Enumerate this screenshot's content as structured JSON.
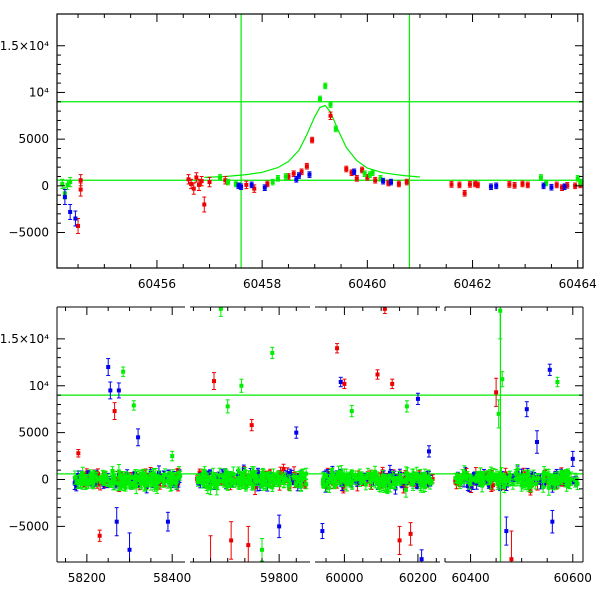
{
  "chart_data": [
    {
      "type": "scatter",
      "title": "",
      "xlabel": "",
      "ylabel": "",
      "xlim": [
        60454.1,
        60464.1
      ],
      "ylim": [
        -8800,
        18400
      ],
      "xticks": [
        60456,
        60458,
        60460,
        60462,
        60464
      ],
      "xtick_labels": [
        "60456",
        "60458",
        "60460",
        "60462",
        "60464"
      ],
      "yticks": [
        -5000,
        0,
        5000,
        10000,
        15000
      ],
      "ytick_labels": [
        "−5000",
        "0",
        "5000",
        "10⁴",
        "1.5×10⁴"
      ],
      "grid": false,
      "hlines": [
        600,
        9000
      ],
      "vlines": [
        60457.6,
        60460.8
      ],
      "colors": {
        "red": "#ee0000",
        "green": "#00ee00",
        "blue": "#0000ee"
      },
      "model_curve": {
        "color": "#00ee00",
        "x": [
          60456.9,
          60457.3,
          60457.7,
          60458.0,
          60458.3,
          60458.5,
          60458.7,
          60458.85,
          60459.0,
          60459.1,
          60459.2,
          60459.3,
          60459.45,
          60459.6,
          60459.8,
          60460.0,
          60460.3,
          60460.7,
          60461.0
        ],
        "y": [
          900,
          1000,
          1200,
          1450,
          1950,
          2600,
          3800,
          5500,
          7400,
          8400,
          8600,
          7900,
          5900,
          4100,
          2700,
          1900,
          1400,
          1100,
          950
        ]
      },
      "series": [
        {
          "name": "",
          "color": "red",
          "points": [
            [
              60454.55,
              600,
              600
            ],
            [
              60454.55,
              -400,
              700
            ],
            [
              60454.5,
              -4300,
              800
            ],
            [
              60456.6,
              700,
              500
            ],
            [
              60456.65,
              200,
              500
            ],
            [
              60456.7,
              -300,
              600
            ],
            [
              60456.75,
              900,
              500
            ],
            [
              60456.8,
              100,
              600
            ],
            [
              60456.85,
              500,
              500
            ],
            [
              60456.9,
              -2000,
              800
            ],
            [
              60457.0,
              400,
              500
            ],
            [
              60457.3,
              600,
              400
            ],
            [
              60457.7,
              100,
              400
            ],
            [
              60457.85,
              -300,
              400
            ],
            [
              60458.1,
              200,
              300
            ],
            [
              60458.5,
              1000,
              300
            ],
            [
              60458.6,
              1300,
              300
            ],
            [
              60458.75,
              1500,
              300
            ],
            [
              60458.85,
              2100,
              300
            ],
            [
              60458.95,
              4900,
              300
            ],
            [
              60459.3,
              7500,
              400
            ],
            [
              60459.6,
              1800,
              300
            ],
            [
              60459.7,
              1400,
              300
            ],
            [
              60459.8,
              800,
              300
            ],
            [
              60459.9,
              1700,
              300
            ],
            [
              60460.0,
              900,
              300
            ],
            [
              60460.15,
              600,
              300
            ],
            [
              60460.4,
              300,
              300
            ],
            [
              60460.6,
              200,
              300
            ],
            [
              60460.75,
              400,
              300
            ],
            [
              60461.6,
              150,
              300
            ],
            [
              60461.75,
              100,
              300
            ],
            [
              60461.85,
              -800,
              300
            ],
            [
              60461.95,
              150,
              300
            ],
            [
              60462.05,
              200,
              300
            ],
            [
              60462.1,
              100,
              300
            ],
            [
              60462.7,
              150,
              300
            ],
            [
              60462.8,
              50,
              300
            ],
            [
              60462.95,
              200,
              300
            ],
            [
              60463.05,
              100,
              300
            ],
            [
              60463.6,
              100,
              300
            ],
            [
              60463.7,
              -200,
              300
            ],
            [
              60463.8,
              50,
              300
            ],
            [
              60463.95,
              0,
              300
            ],
            [
              60464.05,
              100,
              300
            ]
          ]
        },
        {
          "name": "",
          "color": "green",
          "points": [
            [
              60454.2,
              200,
              500
            ],
            [
              60454.25,
              -800,
              600
            ],
            [
              60454.3,
              100,
              500
            ],
            [
              60454.35,
              400,
              500
            ],
            [
              60457.2,
              900,
              300
            ],
            [
              60457.35,
              400,
              300
            ],
            [
              60457.5,
              200,
              300
            ],
            [
              60458.2,
              400,
              300
            ],
            [
              60458.3,
              800,
              300
            ],
            [
              60458.45,
              1000,
              300
            ],
            [
              60459.1,
              9300,
              300
            ],
            [
              60459.2,
              10700,
              300
            ],
            [
              60459.3,
              8700,
              300
            ],
            [
              60459.4,
              6100,
              300
            ],
            [
              60459.95,
              1300,
              300
            ],
            [
              60460.05,
              1200,
              300
            ],
            [
              60460.1,
              1400,
              300
            ],
            [
              60460.25,
              800,
              300
            ],
            [
              60463.3,
              900,
              300
            ],
            [
              60463.4,
              300,
              300
            ],
            [
              60464.0,
              800,
              300
            ],
            [
              60464.05,
              400,
              300
            ]
          ]
        },
        {
          "name": "",
          "color": "blue",
          "points": [
            [
              60454.25,
              -1200,
              800
            ],
            [
              60454.35,
              -2800,
              800
            ],
            [
              60454.45,
              -3500,
              800
            ],
            [
              60457.55,
              0,
              300
            ],
            [
              60457.6,
              -100,
              300
            ],
            [
              60457.8,
              100,
              300
            ],
            [
              60458.05,
              -200,
              300
            ],
            [
              60458.65,
              700,
              300
            ],
            [
              60458.7,
              1100,
              300
            ],
            [
              60458.9,
              1200,
              300
            ],
            [
              60459.75,
              1500,
              300
            ],
            [
              60460.3,
              500,
              300
            ],
            [
              60460.45,
              400,
              300
            ],
            [
              60462.35,
              -100,
              300
            ],
            [
              60462.45,
              0,
              300
            ],
            [
              60463.35,
              0,
              300
            ],
            [
              60463.5,
              -150,
              300
            ],
            [
              60463.75,
              -100,
              300
            ]
          ]
        }
      ]
    },
    {
      "type": "scatter",
      "title": "",
      "xlabel": "",
      "ylabel": "",
      "ylim": [
        -8800,
        18400
      ],
      "grid": false,
      "hlines": [
        600,
        9000
      ],
      "vlines": [
        60458.5
      ],
      "yticks": [
        -5000,
        0,
        5000,
        10000,
        15000
      ],
      "ytick_labels": [
        "−5000",
        "0",
        "5000",
        "10⁴",
        "1.5×10⁴"
      ],
      "segments": [
        {
          "xlim": [
            58130,
            58430
          ],
          "xticks": [
            58200,
            58400
          ],
          "xtick_labels": [
            "58200",
            "58400"
          ]
        },
        {
          "xlim": [
            59540,
            59890
          ],
          "xticks": [
            59800
          ],
          "xtick_labels": [
            "59800"
          ]
        },
        {
          "xlim": [
            59920,
            60260
          ],
          "xticks": [
            60000,
            60200
          ],
          "xtick_labels": [
            "60000",
            "60200"
          ]
        },
        {
          "xlim": [
            60350,
            60620
          ],
          "xticks": [
            60400,
            60600
          ],
          "xtick_labels": [
            "60400",
            "60600"
          ]
        }
      ],
      "clusters": [
        {
          "x_range": [
            58170,
            58420
          ],
          "y_spread": 1000
        },
        {
          "x_range": [
            59560,
            59880
          ],
          "y_spread": 1000
        },
        {
          "x_range": [
            59940,
            60240
          ],
          "y_spread": 1000
        },
        {
          "x_range": [
            60370,
            60610
          ],
          "y_spread": 1000
        }
      ],
      "outliers": [
        {
          "x": 58180,
          "y": 2800,
          "err": 400,
          "color": "red"
        },
        {
          "x": 58230,
          "y": -6000,
          "err": 600,
          "color": "red"
        },
        {
          "x": 58250,
          "y": 12000,
          "err": 900,
          "color": "blue"
        },
        {
          "x": 58255,
          "y": 9500,
          "err": 900,
          "color": "blue"
        },
        {
          "x": 58265,
          "y": 7300,
          "err": 900,
          "color": "red"
        },
        {
          "x": 58275,
          "y": 9500,
          "err": 800,
          "color": "blue"
        },
        {
          "x": 58285,
          "y": 11500,
          "err": 500,
          "color": "green"
        },
        {
          "x": 58270,
          "y": -4500,
          "err": 1500,
          "color": "blue"
        },
        {
          "x": 58300,
          "y": -7500,
          "err": 1800,
          "color": "blue"
        },
        {
          "x": 58310,
          "y": 7900,
          "err": 500,
          "color": "green"
        },
        {
          "x": 58320,
          "y": 4500,
          "err": 900,
          "color": "blue"
        },
        {
          "x": 58390,
          "y": -4500,
          "err": 1000,
          "color": "blue"
        },
        {
          "x": 58400,
          "y": 2500,
          "err": 500,
          "color": "green"
        },
        {
          "x": 59610,
          "y": 10500,
          "err": 900,
          "color": "red"
        },
        {
          "x": 59630,
          "y": 18200,
          "err": 800,
          "color": "green"
        },
        {
          "x": 59650,
          "y": 7800,
          "err": 700,
          "color": "green"
        },
        {
          "x": 59690,
          "y": 10000,
          "err": 700,
          "color": "green"
        },
        {
          "x": 59720,
          "y": 5800,
          "err": 600,
          "color": "red"
        },
        {
          "x": 59780,
          "y": 13500,
          "err": 600,
          "color": "green"
        },
        {
          "x": 59600,
          "y": -9000,
          "err": 3000,
          "color": "red"
        },
        {
          "x": 59660,
          "y": -6500,
          "err": 2000,
          "color": "red"
        },
        {
          "x": 59710,
          "y": -7000,
          "err": 2000,
          "color": "red"
        },
        {
          "x": 59750,
          "y": -7500,
          "err": 1200,
          "color": "green"
        },
        {
          "x": 59800,
          "y": -5000,
          "err": 1200,
          "color": "blue"
        },
        {
          "x": 59850,
          "y": 5000,
          "err": 600,
          "color": "blue"
        },
        {
          "x": 59940,
          "y": -5500,
          "err": 800,
          "color": "blue"
        },
        {
          "x": 59980,
          "y": 14000,
          "err": 500,
          "color": "red"
        },
        {
          "x": 59990,
          "y": 10400,
          "err": 500,
          "color": "blue"
        },
        {
          "x": 60000,
          "y": 10200,
          "err": 500,
          "color": "red"
        },
        {
          "x": 60020,
          "y": 7300,
          "err": 600,
          "color": "green"
        },
        {
          "x": 60090,
          "y": 11200,
          "err": 500,
          "color": "red"
        },
        {
          "x": 60110,
          "y": 18200,
          "err": 500,
          "color": "red"
        },
        {
          "x": 60130,
          "y": 10200,
          "err": 500,
          "color": "red"
        },
        {
          "x": 60170,
          "y": 7800,
          "err": 600,
          "color": "green"
        },
        {
          "x": 60200,
          "y": 8600,
          "err": 600,
          "color": "blue"
        },
        {
          "x": 60150,
          "y": -6500,
          "err": 1500,
          "color": "red"
        },
        {
          "x": 60180,
          "y": -5800,
          "err": 1200,
          "color": "red"
        },
        {
          "x": 60210,
          "y": -8500,
          "err": 1000,
          "color": "blue"
        },
        {
          "x": 60230,
          "y": 3000,
          "err": 600,
          "color": "blue"
        },
        {
          "x": 60450,
          "y": 9300,
          "err": 1500,
          "color": "red"
        },
        {
          "x": 60455,
          "y": 7000,
          "err": 1500,
          "color": "green"
        },
        {
          "x": 60458,
          "y": 18000,
          "err": 3000,
          "color": "green"
        },
        {
          "x": 60462,
          "y": 10700,
          "err": 800,
          "color": "green"
        },
        {
          "x": 60470,
          "y": -5500,
          "err": 1500,
          "color": "blue"
        },
        {
          "x": 60480,
          "y": -8500,
          "err": 3000,
          "color": "red"
        },
        {
          "x": 60510,
          "y": 7500,
          "err": 800,
          "color": "blue"
        },
        {
          "x": 60530,
          "y": 4000,
          "err": 1200,
          "color": "blue"
        },
        {
          "x": 60555,
          "y": 11700,
          "err": 600,
          "color": "blue"
        },
        {
          "x": 60570,
          "y": 10400,
          "err": 500,
          "color": "green"
        },
        {
          "x": 60560,
          "y": -4500,
          "err": 1200,
          "color": "blue"
        },
        {
          "x": 60600,
          "y": 2200,
          "err": 800,
          "color": "blue"
        }
      ]
    }
  ]
}
